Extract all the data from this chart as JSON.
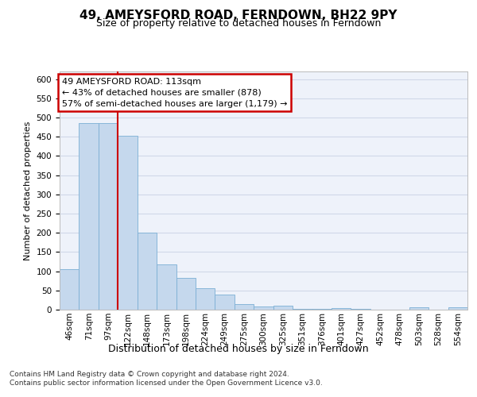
{
  "title": "49, AMEYSFORD ROAD, FERNDOWN, BH22 9PY",
  "subtitle": "Size of property relative to detached houses in Ferndown",
  "xlabel_bottom": "Distribution of detached houses by size in Ferndown",
  "ylabel": "Number of detached properties",
  "bar_labels": [
    "46sqm",
    "71sqm",
    "97sqm",
    "122sqm",
    "148sqm",
    "173sqm",
    "198sqm",
    "224sqm",
    "249sqm",
    "275sqm",
    "300sqm",
    "325sqm",
    "351sqm",
    "376sqm",
    "401sqm",
    "427sqm",
    "452sqm",
    "478sqm",
    "503sqm",
    "528sqm",
    "554sqm"
  ],
  "bar_values": [
    105,
    485,
    485,
    452,
    200,
    118,
    82,
    55,
    40,
    14,
    8,
    10,
    3,
    2,
    5,
    2,
    0,
    0,
    6,
    0,
    6
  ],
  "bar_color": "#c5d8ed",
  "bar_edge_color": "#7bafd4",
  "annotation_box_text": "49 AMEYSFORD ROAD: 113sqm\n← 43% of detached houses are smaller (878)\n57% of semi-detached houses are larger (1,179) →",
  "annotation_box_color": "#ffffff",
  "annotation_box_edge_color": "#cc0000",
  "vline_x": 2.5,
  "vline_color": "#cc0000",
  "ylim": [
    0,
    620
  ],
  "yticks": [
    0,
    50,
    100,
    150,
    200,
    250,
    300,
    350,
    400,
    450,
    500,
    550,
    600
  ],
  "grid_color": "#d0d8e8",
  "background_color": "#eef2fa",
  "footer_text": "Contains HM Land Registry data © Crown copyright and database right 2024.\nContains public sector information licensed under the Open Government Licence v3.0.",
  "title_fontsize": 11,
  "subtitle_fontsize": 9,
  "ylabel_fontsize": 8,
  "tick_fontsize": 7.5,
  "footer_fontsize": 6.5,
  "annotation_fontsize": 8
}
